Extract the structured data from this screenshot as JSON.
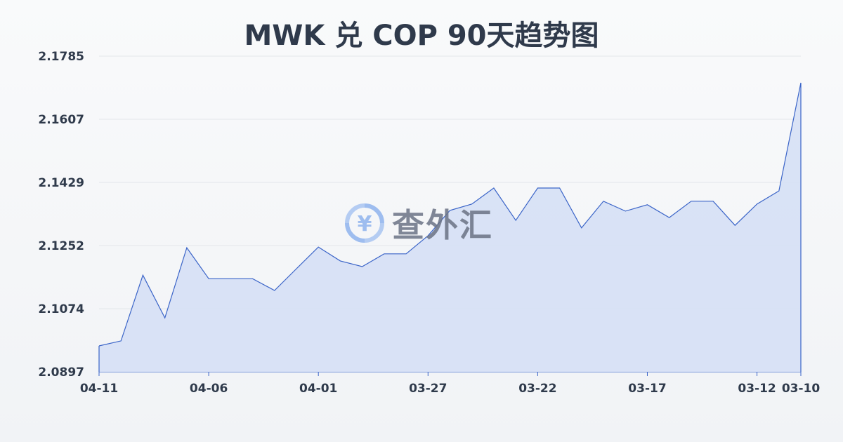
{
  "title": "MWK 兑 COP 90天趋势图",
  "watermark": {
    "text": "查外汇",
    "icon": "yen-exchange-icon"
  },
  "chart_data": {
    "type": "area",
    "title": "MWK 兑 COP 90天趋势图",
    "xlabel": "",
    "ylabel": "",
    "ylim": [
      2.0897,
      2.1785
    ],
    "yticks": [
      "2.1785",
      "2.1607",
      "2.1429",
      "2.1252",
      "2.1074",
      "2.0897"
    ],
    "xticks": [
      "04-11",
      "04-06",
      "04-01",
      "03-27",
      "03-22",
      "03-17",
      "03-12",
      "03-10"
    ],
    "grid": true,
    "line_color": "#3a64c8",
    "fill_color": "#d6e0f5",
    "x": [
      "04-11",
      "04-10",
      "04-09",
      "04-08",
      "04-07",
      "04-06",
      "04-05",
      "04-04",
      "04-03",
      "04-02",
      "04-01",
      "03-31",
      "03-30",
      "03-29",
      "03-28",
      "03-27",
      "03-26",
      "03-25",
      "03-24",
      "03-23",
      "03-22",
      "03-21",
      "03-20",
      "03-19",
      "03-18",
      "03-17",
      "03-16",
      "03-15",
      "03-14",
      "03-13",
      "03-12",
      "03-11",
      "03-10"
    ],
    "values": [
      2.097,
      2.0984,
      2.1169,
      2.1049,
      2.1246,
      2.1159,
      2.1159,
      2.1159,
      2.1126,
      2.1187,
      2.1248,
      2.1209,
      2.1193,
      2.1229,
      2.1229,
      2.128,
      2.1351,
      2.1369,
      2.1414,
      2.1323,
      2.1414,
      2.1414,
      2.1302,
      2.1377,
      2.1349,
      2.1367,
      2.1331,
      2.1377,
      2.1377,
      2.1309,
      2.1369,
      2.1406,
      2.171
    ]
  }
}
